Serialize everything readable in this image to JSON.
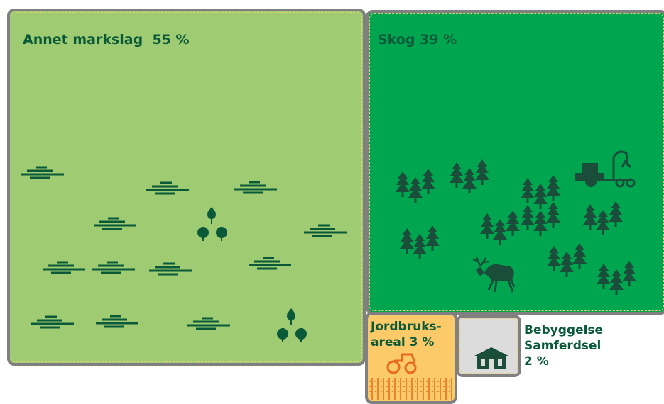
{
  "colors": {
    "annet": "#9fcb72",
    "skog": "#00a64f",
    "jordbruk": "#fdca6a",
    "bebyggelse": "#dcdcdc",
    "label": "#0a5a3a",
    "border": "#808080",
    "icon_dark": "#0a5a3a",
    "icon_orange": "#e86a1c"
  },
  "areas": {
    "annet": {
      "label": "Annet markslag  55 %",
      "percent": 55
    },
    "skog": {
      "label": "Skog 39 %",
      "percent": 39
    },
    "jordbruk": {
      "label": "Jordbruks-\nareal 3 %",
      "percent": 3
    },
    "bebyggelse": {
      "label": "Bebyggelse\nSamferdsel\n2 %",
      "percent": 2
    }
  }
}
